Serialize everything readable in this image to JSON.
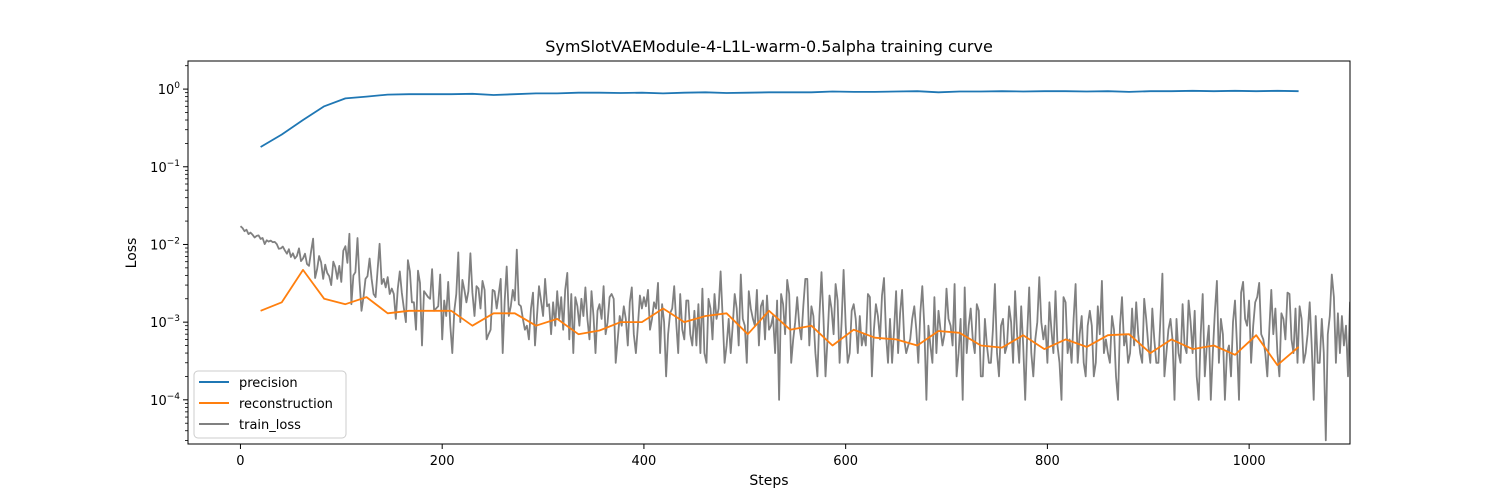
{
  "chart_data": {
    "type": "line",
    "title": "SymSlotVAEModule-4-L1L-warm-0.5alpha training curve",
    "xlabel": "Steps",
    "ylabel": "Loss",
    "yscale": "log",
    "xlim": [
      -52,
      1100
    ],
    "ylim": [
      2.7e-05,
      2.3
    ],
    "x_ticks": [
      0,
      200,
      400,
      600,
      800,
      1000
    ],
    "x_tick_labels": [
      "0",
      "200",
      "400",
      "600",
      "800",
      "1000"
    ],
    "y_ticks": [
      0.0001,
      0.001,
      0.01,
      0.1,
      1
    ],
    "y_tick_labels": [
      {
        "base": "10",
        "exp": "−4"
      },
      {
        "base": "10",
        "exp": "−3"
      },
      {
        "base": "10",
        "exp": "−2"
      },
      {
        "base": "10",
        "exp": "−1"
      },
      {
        "base": "10",
        "exp": "0"
      }
    ],
    "grid": false,
    "legend_position": "lower-left",
    "series": [
      {
        "name": "precision",
        "color": "#1f77b4",
        "x": [
          20,
          41,
          62,
          83,
          104,
          125,
          146,
          167,
          188,
          209,
          230,
          251,
          272,
          293,
          314,
          335,
          356,
          377,
          398,
          419,
          440,
          461,
          482,
          503,
          524,
          545,
          566,
          587,
          608,
          629,
          650,
          671,
          692,
          713,
          734,
          755,
          776,
          797,
          818,
          839,
          860,
          881,
          902,
          923,
          944,
          965,
          986,
          1007,
          1028,
          1049
        ],
        "y": [
          0.18,
          0.26,
          0.4,
          0.6,
          0.76,
          0.8,
          0.85,
          0.86,
          0.86,
          0.86,
          0.87,
          0.84,
          0.86,
          0.88,
          0.88,
          0.9,
          0.9,
          0.89,
          0.9,
          0.88,
          0.9,
          0.91,
          0.89,
          0.9,
          0.91,
          0.91,
          0.91,
          0.93,
          0.92,
          0.92,
          0.93,
          0.94,
          0.91,
          0.93,
          0.93,
          0.94,
          0.93,
          0.94,
          0.94,
          0.93,
          0.94,
          0.92,
          0.94,
          0.94,
          0.95,
          0.94,
          0.95,
          0.94,
          0.95,
          0.94
        ]
      },
      {
        "name": "reconstruction",
        "color": "#ff7f0e",
        "x": [
          20,
          41,
          62,
          83,
          104,
          125,
          146,
          167,
          188,
          209,
          230,
          251,
          272,
          293,
          314,
          335,
          356,
          377,
          398,
          419,
          440,
          461,
          482,
          503,
          524,
          545,
          566,
          587,
          608,
          629,
          650,
          671,
          692,
          713,
          734,
          755,
          776,
          797,
          818,
          839,
          860,
          881,
          902,
          923,
          944,
          965,
          986,
          1007,
          1028,
          1049
        ],
        "y": [
          0.0014,
          0.0018,
          0.0047,
          0.002,
          0.0017,
          0.0021,
          0.0013,
          0.0014,
          0.0014,
          0.0014,
          0.0009,
          0.0013,
          0.0013,
          0.0009,
          0.0011,
          0.0007,
          0.00078,
          0.001,
          0.001,
          0.0015,
          0.001,
          0.0012,
          0.0013,
          0.0007,
          0.0014,
          0.0008,
          0.0009,
          0.0005,
          0.0008,
          0.00063,
          0.0006,
          0.0005,
          0.00077,
          0.00073,
          0.0005,
          0.00047,
          0.00068,
          0.00045,
          0.0006,
          0.00048,
          0.00068,
          0.0007,
          0.0004,
          0.0006,
          0.00045,
          0.0005,
          0.00038,
          0.00068,
          0.00028,
          0.00048
        ]
      },
      {
        "name": "train_loss",
        "color": "#808080",
        "x_start": 0,
        "x_step": 2,
        "y": [
          0.0172,
          0.0163,
          0.0148,
          0.0155,
          0.0136,
          0.0142,
          0.0133,
          0.0123,
          0.0129,
          0.0131,
          0.0118,
          0.0121,
          0.0101,
          0.0113,
          0.0109,
          0.0112,
          0.0107,
          0.0108,
          0.0101,
          0.0088,
          0.0089,
          0.0094,
          0.0084,
          0.0076,
          0.0087,
          0.0069,
          0.0077,
          0.0066,
          0.0071,
          0.0089,
          0.0061,
          0.0066,
          0.0076,
          0.0056,
          0.0053,
          0.0082,
          0.0119,
          0.0037,
          0.0048,
          0.0071,
          0.0059,
          0.0036,
          0.0055,
          0.0043,
          0.0039,
          0.003,
          0.006,
          0.0051,
          0.0036,
          0.0053,
          0.0033,
          0.0083,
          0.0095,
          0.0058,
          0.0137,
          0.0017,
          0.004,
          0.0044,
          0.0121,
          0.0034,
          0.0014,
          0.0021,
          0.0036,
          0.0039,
          0.0066,
          0.0036,
          0.0023,
          0.0021,
          0.0047,
          0.0102,
          0.0031,
          0.0036,
          0.0028,
          0.0038,
          0.0023,
          0.0027,
          0.0023,
          0.0011,
          0.0027,
          0.0045,
          0.0024,
          0.0015,
          0.001,
          0.0063,
          0.0045,
          0.0018,
          0.0018,
          0.0008,
          0.0046,
          0.0032,
          0.0005,
          0.0025,
          0.0023,
          0.0021,
          0.002,
          0.0048,
          0.0014,
          0.0015,
          0.0016,
          0.0041,
          0.0006,
          0.0019,
          0.0012,
          0.0033,
          0.0009,
          0.0004,
          0.0014,
          0.0023,
          0.0079,
          0.001,
          0.0035,
          0.0026,
          0.0018,
          0.0025,
          0.0077,
          0.0024,
          0.0012,
          0.0029,
          0.0027,
          0.0015,
          0.0034,
          0.0026,
          0.0006,
          0.0007,
          0.0008,
          0.0026,
          0.0025,
          0.0015,
          0.0023,
          0.0036,
          0.0004,
          0.0019,
          0.0052,
          0.0012,
          0.0016,
          0.0026,
          0.0019,
          0.0086,
          0.0017,
          0.0016,
          0.0011,
          0.0008,
          0.0009,
          0.0006,
          0.0015,
          0.0024,
          0.0005,
          0.0012,
          0.0029,
          0.0019,
          0.0012,
          0.0036,
          0.0016,
          0.0017,
          0.0007,
          0.0018,
          0.0009,
          0.0025,
          0.0011,
          0.0021,
          0.0008,
          0.0026,
          0.0043,
          0.0006,
          0.0023,
          0.0004,
          0.0021,
          0.0016,
          0.0009,
          0.002,
          0.0012,
          0.0028,
          0.0011,
          0.0006,
          0.0025,
          0.0012,
          0.0004,
          0.0014,
          0.0017,
          0.0011,
          0.0029,
          0.0007,
          0.001,
          0.0021,
          0.0023,
          0.002,
          0.0003,
          0.0006,
          0.0012,
          0.0009,
          0.0016,
          0.0011,
          0.0005,
          0.0018,
          0.0028,
          0.0007,
          0.0004,
          0.0009,
          0.0022,
          0.0015,
          0.0021,
          0.0016,
          0.0026,
          0.0008,
          0.0011,
          0.0018,
          0.0015,
          0.0032,
          0.0004,
          0.0017,
          0.001,
          0.0002,
          0.0007,
          0.0013,
          0.0015,
          0.0029,
          0.001,
          0.0004,
          0.0023,
          0.0008,
          0.0006,
          0.0019,
          0.0019,
          0.0007,
          0.0005,
          0.0014,
          0.0005,
          0.0017,
          0.0004,
          0.0027,
          0.0004,
          0.0003,
          0.002,
          0.0015,
          0.0006,
          0.0023,
          0.0011,
          0.0015,
          0.0045,
          0.0012,
          0.0003,
          0.0005,
          0.0011,
          0.0004,
          0.0009,
          0.0023,
          0.0015,
          0.0005,
          0.0041,
          0.0011,
          0.0009,
          0.0003,
          0.0025,
          0.0015,
          0.0011,
          0.0009,
          0.0026,
          0.0005,
          0.0016,
          0.0019,
          0.0006,
          0.0022,
          0.0008,
          0.0009,
          0.0012,
          0.0004,
          0.0019,
          0.0001,
          0.0023,
          0.0017,
          0.0007,
          0.0035,
          0.0023,
          0.0003,
          0.0006,
          0.001,
          0.0021,
          0.0009,
          0.0006,
          0.0016,
          0.0036,
          0.0036,
          0.0005,
          0.0016,
          0.0012,
          0.0004,
          0.0002,
          0.0012,
          0.0044,
          0.0011,
          0.0002,
          0.0006,
          0.0022,
          0.0015,
          0.0007,
          0.0031,
          0.0019,
          0.0003,
          0.001,
          0.0047,
          0.0009,
          0.0003,
          0.0004,
          0.0014,
          0.0017,
          0.0011,
          0.0004,
          0.0012,
          0.0005,
          0.0007,
          0.0005,
          0.0023,
          0.0021,
          0.0002,
          0.0008,
          0.0017,
          0.0012,
          0.0006,
          0.0022,
          0.0037,
          0.0007,
          0.0003,
          0.0011,
          0.0003,
          0.0008,
          0.0025,
          0.0004,
          0.0013,
          0.0026,
          0.0006,
          0.0004,
          0.0005,
          0.0006,
          0.0011,
          0.0016,
          0.0008,
          0.0003,
          0.0013,
          0.0029,
          0.0009,
          0.0001,
          0.0009,
          0.0005,
          0.0003,
          0.0021,
          0.0004,
          0.0014,
          0.0008,
          0.0005,
          0.0007,
          0.0027,
          0.0011,
          0.0009,
          0.0005,
          0.0031,
          0.0002,
          0.0004,
          0.0011,
          0.0001,
          0.0028,
          0.0004,
          0.0009,
          0.0015,
          0.0006,
          0.0004,
          0.0017,
          0.0014,
          0.0002,
          0.0002,
          0.0011,
          0.0005,
          0.0003,
          0.0003,
          0.0008,
          0.0031,
          0.0004,
          0.0002,
          0.0009,
          0.0011,
          0.0004,
          0.0005,
          0.0016,
          0.001,
          0.0003,
          0.0025,
          0.0007,
          0.0003,
          0.0016,
          0.0005,
          0.0001,
          0.0007,
          0.0028,
          0.0004,
          0.0002,
          0.0006,
          0.001,
          0.0038,
          0.001,
          0.0006,
          0.0009,
          0.0003,
          0.0018,
          0.0008,
          0.0004,
          0.0025,
          0.0005,
          0.0003,
          0.0001,
          0.0021,
          0.0018,
          0.0004,
          0.0006,
          0.0003,
          0.0011,
          0.0031,
          0.0003,
          0.0007,
          0.0012,
          0.0003,
          0.0002,
          0.0009,
          0.0014,
          0.0009,
          0.0002,
          0.0003,
          0.0016,
          0.0007,
          0.0034,
          0.0004,
          0.0006,
          0.0004,
          0.0003,
          0.0012,
          0.0008,
          0.0002,
          0.0001,
          0.0009,
          0.0021,
          0.0005,
          0.0007,
          0.0003,
          0.0004,
          0.0015,
          0.0005,
          0.0018,
          0.0007,
          0.0004,
          0.0003,
          0.002,
          0.0011,
          0.0005,
          0.0003,
          0.0015,
          0.0006,
          0.0003,
          0.0003,
          0.0011,
          0.0042,
          0.0002,
          0.0004,
          0.0008,
          0.0011,
          0.0006,
          0.0001,
          0.0011,
          0.0004,
          0.0003,
          0.0017,
          0.0005,
          0.0004,
          0.0019,
          0.001,
          0.0004,
          0.0014,
          0.0002,
          0.0001,
          0.0007,
          0.0023,
          0.0002,
          0.0005,
          0.0009,
          0.0001,
          0.0004,
          0.0013,
          0.0034,
          0.0003,
          0.0011,
          0.0007,
          0.0001,
          0.0004,
          0.0005,
          0.0002,
          0.001,
          0.0019,
          0.0005,
          0.0001,
          0.0024,
          0.0033,
          0.0011,
          0.0009,
          0.0019,
          0.0003,
          0.0009,
          0.0018,
          0.0021,
          0.0032,
          0.0007,
          0.0006,
          0.0004,
          0.0002,
          0.0008,
          0.0026,
          0.0007,
          0.0015,
          0.0004,
          0.0002,
          0.0013,
          0.0011,
          0.0006,
          0.0024,
          0.0023,
          0.0006,
          0.0004,
          0.0015,
          0.0003,
          0.0016,
          0.0011,
          0.0003,
          0.0004,
          0.0007,
          0.0018,
          0.0005,
          0.0001,
          0.0012,
          0.0003,
          0.0003,
          0.0011,
          0.0004,
          3e-05,
          0.0007,
          0.0012,
          0.0041,
          0.0021,
          0.0003,
          0.0013,
          0.0004,
          0.0012,
          0.0005,
          0.0009,
          0.0002,
          0.0018,
          0.0011,
          0.0003,
          0.0004,
          0.0013,
          0.0025,
          0.0007,
          0.0003,
          0.0005,
          0.0014,
          0.0004,
          0.0008,
          0.0014,
          0.0013
        ]
      }
    ]
  }
}
